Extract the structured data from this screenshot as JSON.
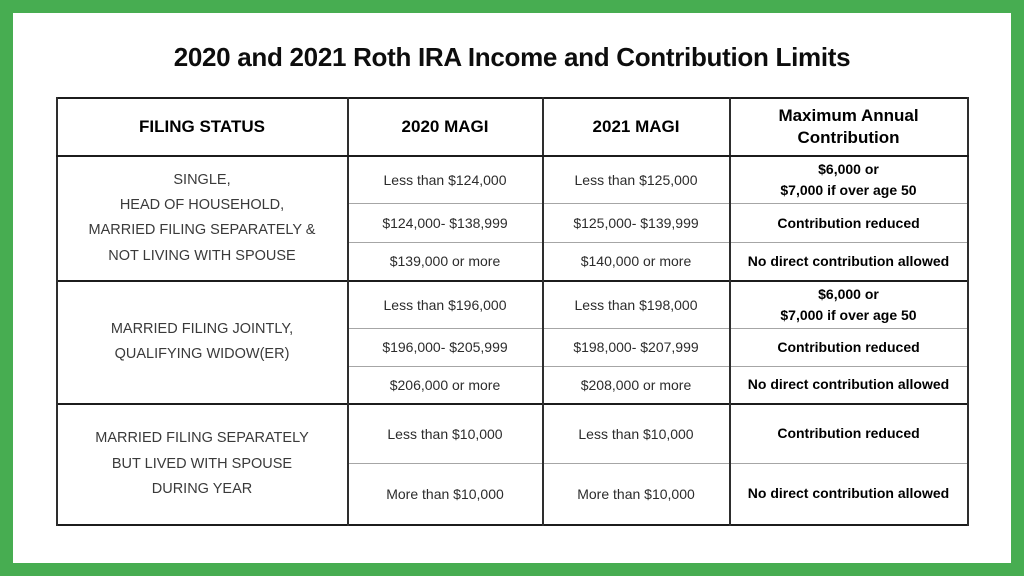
{
  "title": "2020 and 2021 Roth IRA Income and Contribution Limits",
  "colors": {
    "frame_green": "#47ad51",
    "grid_dark": "#1c1c1c",
    "grid_light": "#a6a6a6"
  },
  "table": {
    "headers": [
      "FILING STATUS",
      "2020 MAGI",
      "2021 MAGI",
      "Maximum Annual\nContribution"
    ],
    "groups": [
      {
        "filing_status": "SINGLE,\nHEAD OF HOUSEHOLD,\nMARRIED FILING SEPARATELY &\nNOT LIVING WITH SPOUSE",
        "rows": [
          {
            "magi_2020": "Less than $124,000",
            "magi_2021": "Less than $125,000",
            "max_contribution": "$6,000 or\n$7,000 if over age 50"
          },
          {
            "magi_2020": "$124,000- $138,999",
            "magi_2021": "$125,000- $139,999",
            "max_contribution": "Contribution reduced"
          },
          {
            "magi_2020": "$139,000 or more",
            "magi_2021": "$140,000 or more",
            "max_contribution": "No direct contribution allowed"
          }
        ]
      },
      {
        "filing_status": "MARRIED FILING JOINTLY,\nQUALIFYING WIDOW(ER)",
        "rows": [
          {
            "magi_2020": "Less than $196,000",
            "magi_2021": "Less than $198,000",
            "max_contribution": "$6,000 or\n$7,000 if over age 50"
          },
          {
            "magi_2020": "$196,000- $205,999",
            "magi_2021": "$198,000- $207,999",
            "max_contribution": "Contribution reduced"
          },
          {
            "magi_2020": "$206,000 or more",
            "magi_2021": "$208,000 or more",
            "max_contribution": "No direct contribution allowed"
          }
        ]
      },
      {
        "filing_status": "MARRIED FILING SEPARATELY\nBUT LIVED WITH SPOUSE\nDURING YEAR",
        "rows": [
          {
            "magi_2020": "Less than $10,000",
            "magi_2021": "Less than $10,000",
            "max_contribution": "Contribution reduced"
          },
          {
            "magi_2020": "More than $10,000",
            "magi_2021": "More than $10,000",
            "max_contribution": "No direct contribution allowed"
          }
        ]
      }
    ]
  },
  "chart_data": {
    "type": "table",
    "title": "2020 and 2021 Roth IRA Income and Contribution Limits",
    "columns": [
      "FILING STATUS",
      "2020 MAGI",
      "2021 MAGI",
      "Maximum Annual Contribution"
    ],
    "rows": [
      [
        "SINGLE, HEAD OF HOUSEHOLD, MARRIED FILING SEPARATELY & NOT LIVING WITH SPOUSE",
        "Less than $124,000",
        "Less than $125,000",
        "$6,000 or $7,000 if over age 50"
      ],
      [
        "SINGLE, HEAD OF HOUSEHOLD, MARRIED FILING SEPARATELY & NOT LIVING WITH SPOUSE",
        "$124,000- $138,999",
        "$125,000- $139,999",
        "Contribution reduced"
      ],
      [
        "SINGLE, HEAD OF HOUSEHOLD, MARRIED FILING SEPARATELY & NOT LIVING WITH SPOUSE",
        "$139,000 or more",
        "$140,000 or more",
        "No direct contribution allowed"
      ],
      [
        "MARRIED FILING JOINTLY, QUALIFYING WIDOW(ER)",
        "Less than $196,000",
        "Less than $198,000",
        "$6,000 or $7,000 if over age 50"
      ],
      [
        "MARRIED FILING JOINTLY, QUALIFYING WIDOW(ER)",
        "$196,000- $205,999",
        "$198,000- $207,999",
        "Contribution reduced"
      ],
      [
        "MARRIED FILING JOINTLY, QUALIFYING WIDOW(ER)",
        "$206,000 or more",
        "$208,000 or more",
        "No direct contribution allowed"
      ],
      [
        "MARRIED FILING SEPARATELY BUT LIVED WITH SPOUSE DURING YEAR",
        "Less than $10,000",
        "Less than $10,000",
        "Contribution reduced"
      ],
      [
        "MARRIED FILING SEPARATELY BUT LIVED WITH SPOUSE DURING YEAR",
        "More than $10,000",
        "More than $10,000",
        "No direct contribution allowed"
      ]
    ]
  }
}
